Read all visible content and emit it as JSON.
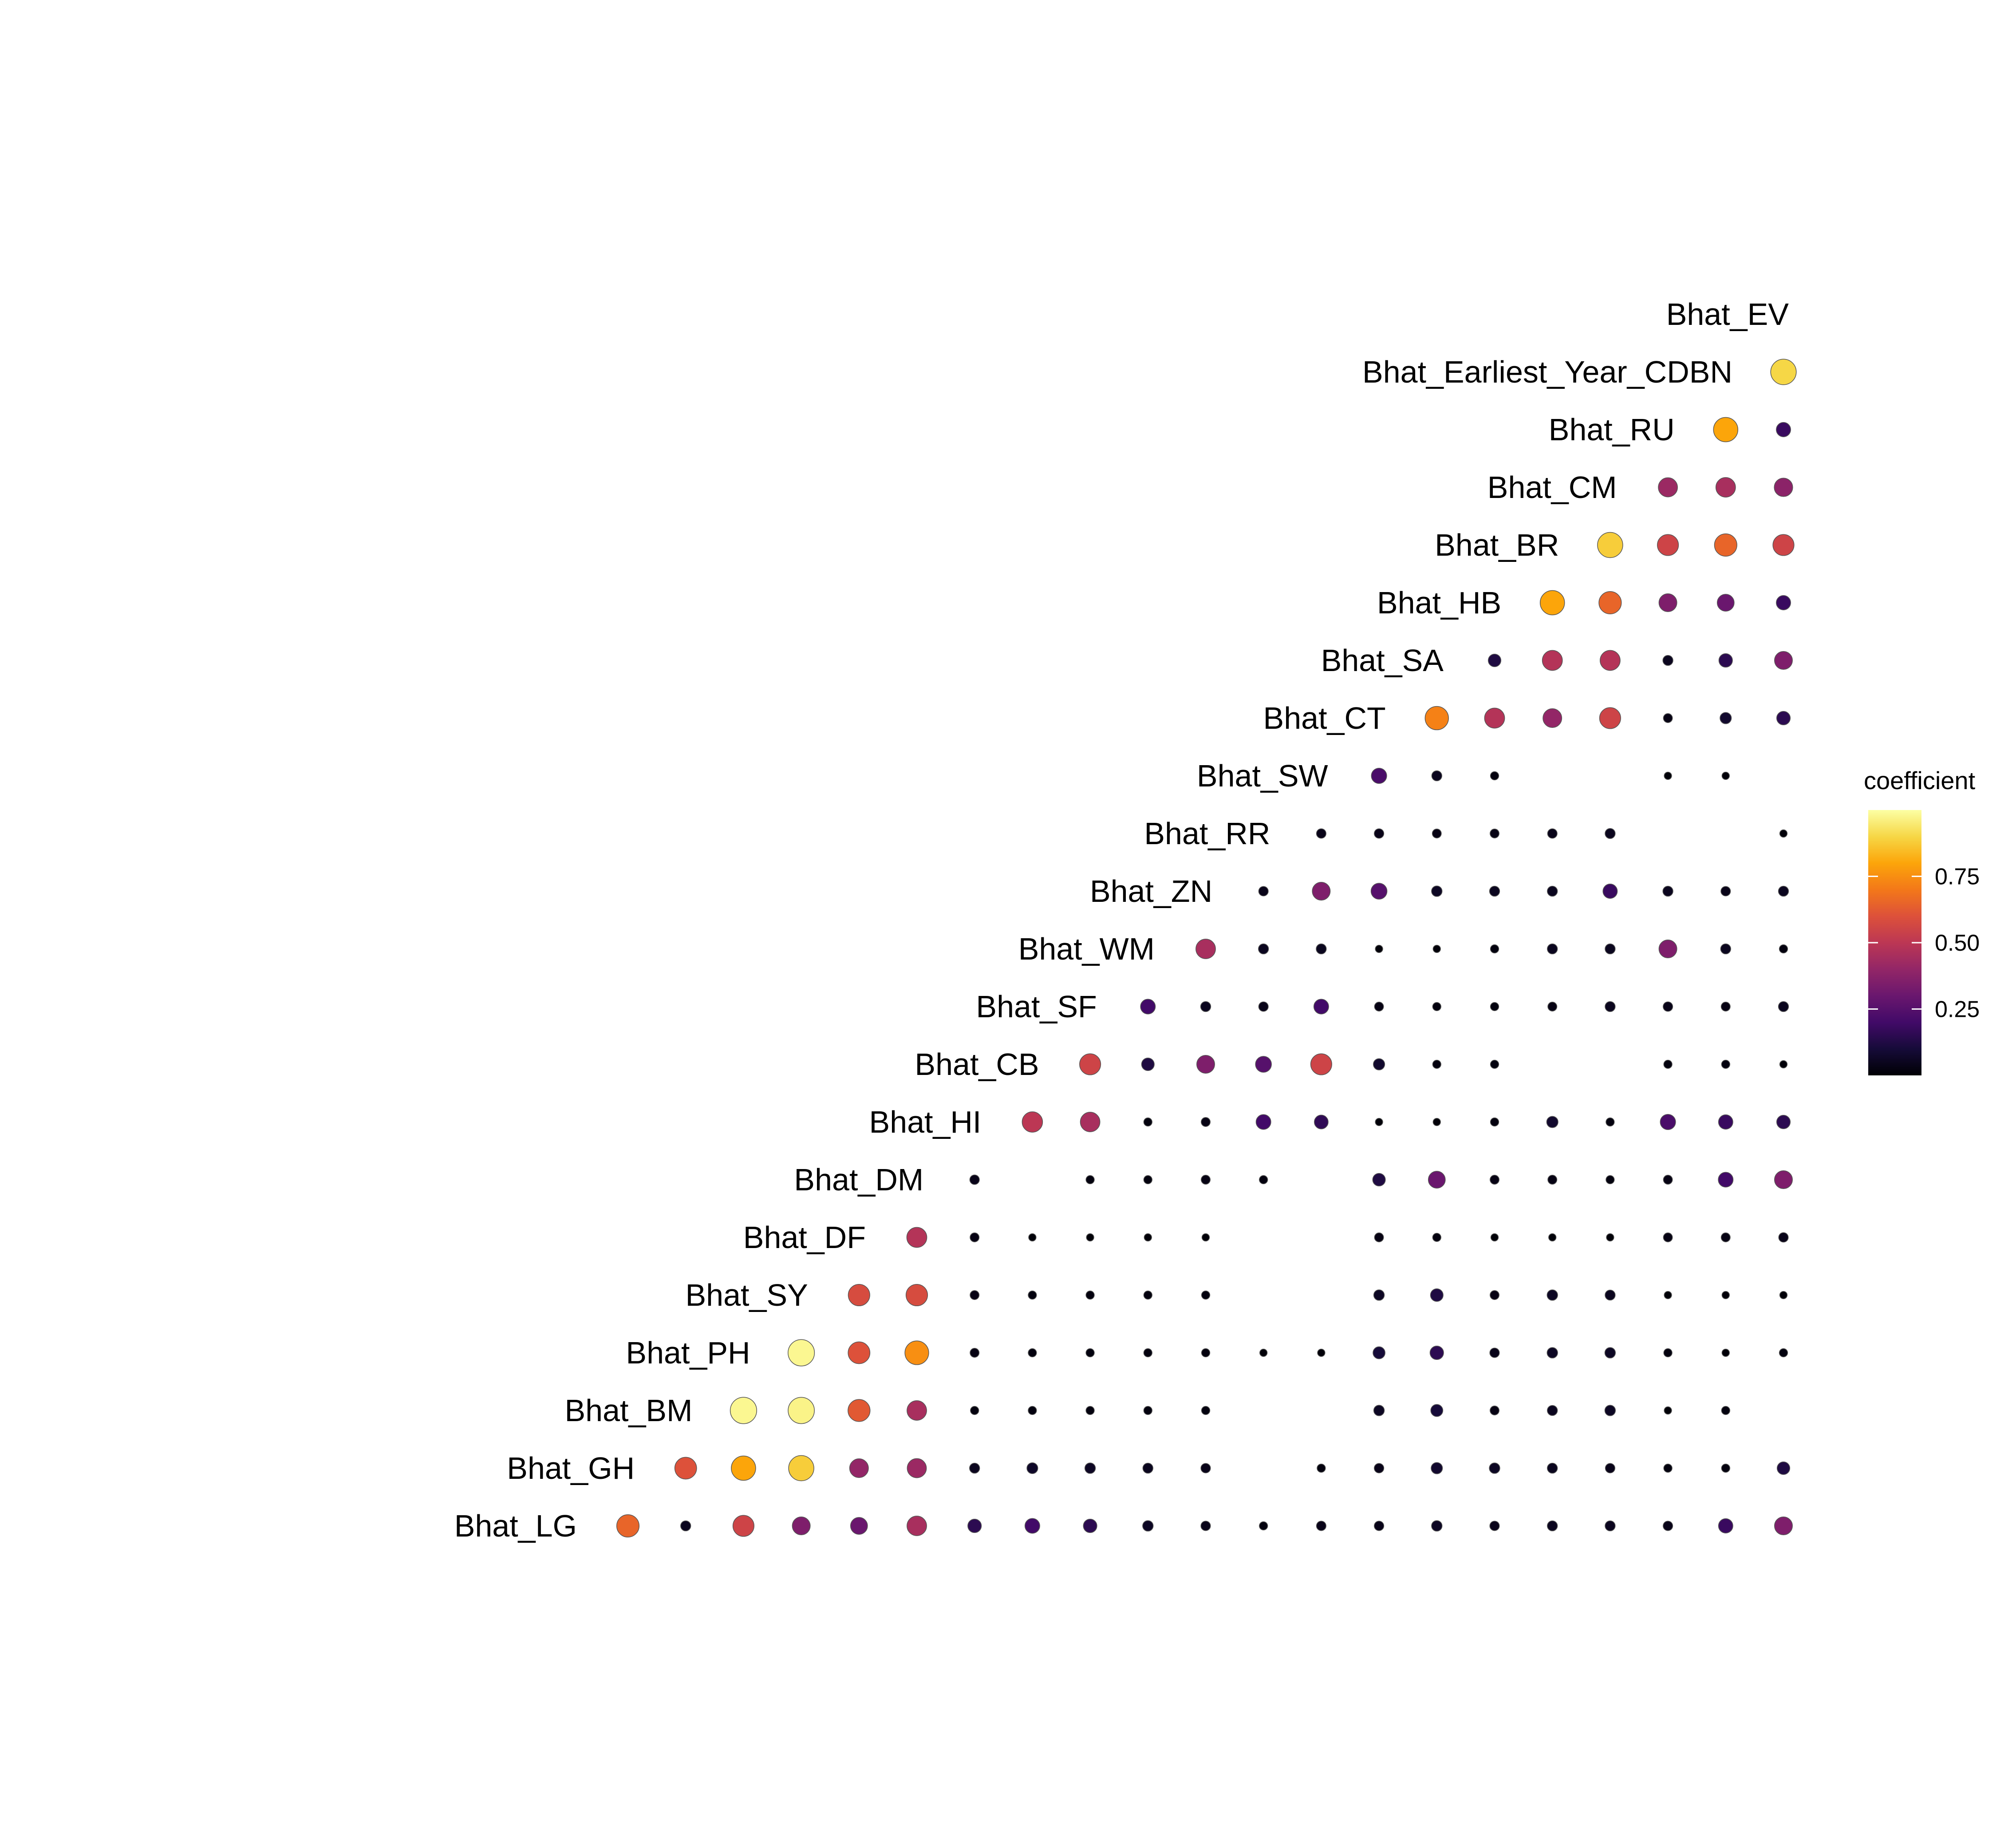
{
  "chart_data": {
    "type": "heatmap",
    "title": "",
    "variables": [
      "Bhat_LG",
      "Bhat_GH",
      "Bhat_BM",
      "Bhat_PH",
      "Bhat_SY",
      "Bhat_DF",
      "Bhat_DM",
      "Bhat_HI",
      "Bhat_CB",
      "Bhat_SF",
      "Bhat_WM",
      "Bhat_ZN",
      "Bhat_RR",
      "Bhat_SW",
      "Bhat_CT",
      "Bhat_SA",
      "Bhat_HB",
      "Bhat_BR",
      "Bhat_CM",
      "Bhat_RU",
      "Bhat_Earliest_Year_CDBN",
      "Bhat_EV"
    ],
    "rows": [
      [
        0.65,
        0.05,
        0.55,
        0.35,
        0.3,
        0.45,
        0.15,
        0.2,
        0.15,
        0.06,
        0.04,
        0.02,
        0.04,
        0.04,
        0.06,
        0.04,
        0.05,
        0.05,
        0.04,
        0.18,
        0.35
      ],
      [
        0.6,
        0.8,
        0.88,
        0.4,
        0.42,
        0.05,
        0.07,
        0.06,
        0.05,
        0.04,
        null,
        0.02,
        0.04,
        0.08,
        0.06,
        0.05,
        0.04,
        0.02,
        0.02,
        0.12
      ],
      [
        0.98,
        0.97,
        0.62,
        0.45,
        0.02,
        0.02,
        0.02,
        0.02,
        0.02,
        null,
        null,
        0.06,
        0.1,
        0.03,
        0.05,
        0.06,
        0.01,
        0.02
      ],
      [
        0.98,
        0.6,
        0.75,
        0.03,
        0.02,
        0.02,
        0.02,
        0.02,
        0.01,
        0.01,
        0.1,
        0.15,
        0.04,
        0.06,
        0.06,
        0.02,
        0.01,
        0.02
      ],
      [
        0.58,
        0.58,
        0.03,
        0.02,
        0.02,
        0.02,
        0.02,
        null,
        null,
        0.06,
        0.12,
        0.03,
        0.06,
        0.05,
        0.01,
        0.01,
        0.01
      ],
      [
        0.48,
        0.03,
        0.01,
        0.01,
        0.01,
        0.01,
        null,
        null,
        0.03,
        0.02,
        0.01,
        0.01,
        0.01,
        0.03,
        0.03,
        0.04
      ],
      [
        0.04,
        null,
        0.02,
        0.02,
        0.03,
        0.02,
        null,
        0.12,
        0.3,
        0.03,
        0.03,
        0.02,
        0.03,
        0.2,
        0.35
      ],
      [
        0.5,
        0.45,
        0.02,
        0.03,
        0.2,
        0.16,
        0.01,
        0.01,
        0.02,
        0.08,
        0.02,
        0.22,
        0.18,
        0.15
      ],
      [
        0.55,
        0.12,
        0.35,
        0.25,
        0.55,
        0.08,
        0.02,
        0.02,
        null,
        null,
        0.02,
        0.02,
        0.01
      ],
      [
        0.2,
        0.05,
        0.04,
        0.2,
        0.03,
        0.02,
        0.02,
        0.03,
        0.05,
        0.04,
        0.03,
        0.05
      ],
      [
        0.45,
        0.05,
        0.05,
        0.01,
        0.01,
        0.02,
        0.05,
        0.05,
        0.35,
        0.05,
        0.02
      ],
      [
        0.04,
        0.35,
        0.25,
        0.06,
        0.05,
        0.05,
        0.18,
        0.05,
        0.04,
        0.05
      ],
      [
        0.04,
        0.04,
        0.03,
        0.03,
        0.04,
        0.05,
        null,
        null,
        0.01
      ],
      [
        0.22,
        0.05,
        0.02,
        null,
        null,
        0.01,
        0.01,
        null
      ],
      [
        0.72,
        0.48,
        0.4,
        0.55,
        0.03,
        0.08,
        0.15
      ],
      [
        0.12,
        0.48,
        0.48,
        0.05,
        0.15,
        0.35
      ],
      [
        0.8,
        0.65,
        0.35,
        0.3,
        0.18
      ],
      [
        0.88,
        0.55,
        0.65,
        0.55
      ],
      [
        0.42,
        0.45,
        0.38
      ],
      [
        0.8,
        0.18
      ],
      [
        0.9
      ]
    ],
    "legend": {
      "title": "coefficient",
      "ticks": [
        0.25,
        0.5,
        0.75
      ],
      "tick_labels": [
        "0.25",
        "0.50",
        "0.75"
      ],
      "range": [
        0,
        1
      ],
      "placement": "right",
      "colormap": "inferno"
    },
    "grid": false
  }
}
